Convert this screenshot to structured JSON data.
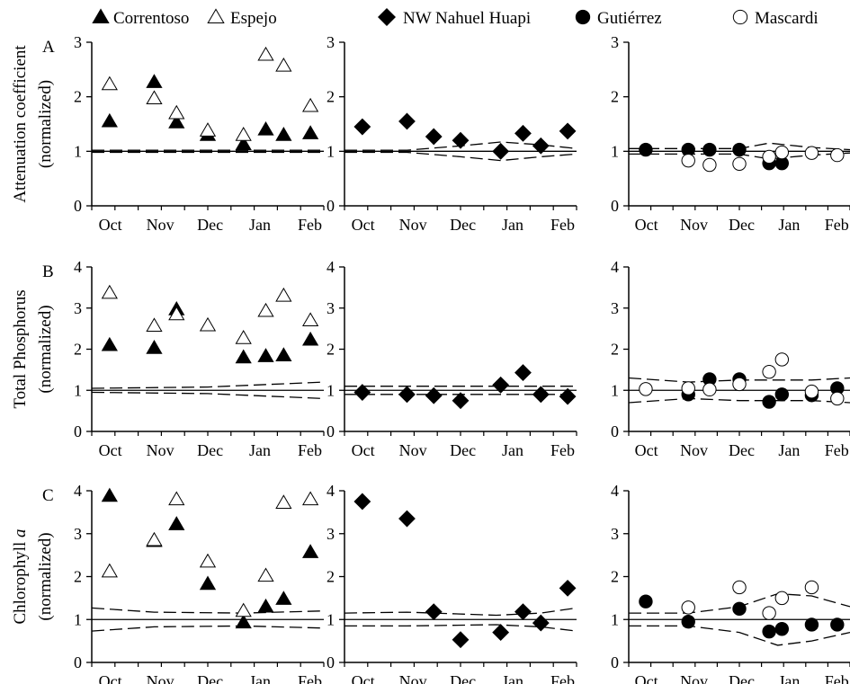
{
  "legend": [
    {
      "name": "Correntoso",
      "marker": "triangle",
      "fill": "filled"
    },
    {
      "name": "Espejo",
      "marker": "triangle",
      "fill": "open"
    },
    {
      "name": "NW Nahuel Huapi",
      "marker": "diamond",
      "fill": "filled"
    },
    {
      "name": "Gutiérrez",
      "marker": "circle",
      "fill": "filled"
    },
    {
      "name": "Mascardi",
      "marker": "circle",
      "fill": "open"
    }
  ],
  "months": [
    "Oct",
    "Nov",
    "Dec",
    "Jan",
    "Feb"
  ],
  "rows": [
    {
      "letter": "A",
      "ylabel_line1": "Attenuation coefficient",
      "ylabel_line2": "(normalized)",
      "yticks": [
        "0",
        "1",
        "2",
        "3"
      ],
      "ylim": [
        0,
        3
      ]
    },
    {
      "letter": "B",
      "ylabel_line1": "Total Phosphorus",
      "ylabel_line2": "(normalized)",
      "yticks": [
        "0",
        "1",
        "2",
        "3",
        "4"
      ],
      "ylim": [
        0,
        4
      ]
    },
    {
      "letter": "C",
      "ylabel_line1": "Chlorophyll a",
      "ylabel_line2": "(normalized)",
      "yticks": [
        "0",
        "1",
        "2",
        "3",
        "4"
      ],
      "ylim": [
        0,
        4
      ]
    }
  ],
  "chart_data": [
    {
      "type": "scatter",
      "panel": "A1",
      "x_axis": "month",
      "ylim": [
        0,
        3
      ],
      "reference_line": 1,
      "series": [
        {
          "name": "Correntoso",
          "x": [
            0.4,
            1.4,
            1.9,
            2.6,
            3.4,
            3.9,
            4.3,
            4.9
          ],
          "y": [
            1.55,
            2.27,
            1.53,
            1.3,
            1.13,
            1.4,
            1.3,
            1.33
          ]
        },
        {
          "name": "Espejo",
          "x": [
            0.4,
            1.4,
            1.9,
            2.6,
            3.4,
            3.9,
            4.3,
            4.9
          ],
          "y": [
            2.23,
            1.97,
            1.7,
            1.38,
            1.3,
            2.77,
            2.57,
            1.83
          ]
        }
      ],
      "envelope_upper": [
        [
          0,
          1.02
        ],
        [
          5.2,
          1.02
        ]
      ],
      "envelope_lower": [
        [
          0,
          0.98
        ],
        [
          5.2,
          0.98
        ]
      ]
    },
    {
      "type": "scatter",
      "panel": "A2",
      "x_axis": "month",
      "ylim": [
        0,
        3
      ],
      "reference_line": 1,
      "series": [
        {
          "name": "NW Nahuel Huapi",
          "x": [
            0.4,
            1.4,
            2.0,
            2.6,
            3.5,
            4.0,
            4.4,
            5.0
          ],
          "y": [
            1.45,
            1.55,
            1.27,
            1.2,
            1.0,
            1.33,
            1.1,
            1.37
          ]
        }
      ],
      "envelope_upper": [
        [
          0,
          1.02
        ],
        [
          1.4,
          1.02
        ],
        [
          2.6,
          1.1
        ],
        [
          3.5,
          1.17
        ],
        [
          4.4,
          1.12
        ],
        [
          5.2,
          1.05
        ]
      ],
      "envelope_lower": [
        [
          0,
          0.98
        ],
        [
          1.4,
          0.98
        ],
        [
          2.6,
          0.9
        ],
        [
          3.5,
          0.83
        ],
        [
          4.4,
          0.9
        ],
        [
          5.2,
          0.95
        ]
      ]
    },
    {
      "type": "scatter",
      "panel": "A3",
      "x_axis": "month",
      "ylim": [
        0,
        3
      ],
      "reference_line": 1,
      "series": [
        {
          "name": "Gutiérrez",
          "x": [
            0.4,
            1.4,
            1.9,
            2.6,
            3.3,
            3.6
          ],
          "y": [
            1.03,
            1.03,
            1.03,
            1.03,
            0.78,
            0.78
          ]
        },
        {
          "name": "Mascardi",
          "x": [
            1.4,
            1.9,
            2.6,
            3.3,
            3.6,
            4.3,
            4.9
          ],
          "y": [
            0.83,
            0.75,
            0.77,
            0.9,
            0.98,
            0.97,
            0.93
          ]
        }
      ],
      "envelope_upper": [
        [
          0,
          1.05
        ],
        [
          2.6,
          1.05
        ],
        [
          3.3,
          1.15
        ],
        [
          4.3,
          1.07
        ],
        [
          5.2,
          1.03
        ]
      ],
      "envelope_lower": [
        [
          0,
          0.95
        ],
        [
          2.6,
          0.95
        ],
        [
          3.3,
          0.86
        ],
        [
          4.3,
          0.93
        ],
        [
          5.2,
          0.97
        ]
      ]
    },
    {
      "type": "scatter",
      "panel": "B1",
      "x_axis": "month",
      "ylim": [
        0,
        4
      ],
      "reference_line": 1,
      "series": [
        {
          "name": "Correntoso",
          "x": [
            0.4,
            1.4,
            1.9,
            3.4,
            3.9,
            4.3,
            4.9
          ],
          "y": [
            2.1,
            2.03,
            2.97,
            1.8,
            1.83,
            1.85,
            2.23
          ]
        },
        {
          "name": "Espejo",
          "x": [
            0.4,
            1.4,
            1.9,
            2.6,
            3.4,
            3.9,
            4.3,
            4.9
          ],
          "y": [
            3.37,
            2.57,
            2.85,
            2.58,
            2.27,
            2.93,
            3.3,
            2.7
          ]
        }
      ],
      "envelope_upper": [
        [
          0,
          1.05
        ],
        [
          2.6,
          1.08
        ],
        [
          5.2,
          1.2
        ]
      ],
      "envelope_lower": [
        [
          0,
          0.95
        ],
        [
          2.6,
          0.92
        ],
        [
          5.2,
          0.8
        ]
      ]
    },
    {
      "type": "scatter",
      "panel": "B2",
      "x_axis": "month",
      "ylim": [
        0,
        4
      ],
      "reference_line": 1,
      "series": [
        {
          "name": "NW Nahuel Huapi",
          "x": [
            0.4,
            1.4,
            2.0,
            2.6,
            3.5,
            4.0,
            4.4,
            5.0
          ],
          "y": [
            0.95,
            0.9,
            0.87,
            0.75,
            1.13,
            1.43,
            0.9,
            0.85
          ]
        }
      ],
      "envelope_upper": [
        [
          0,
          1.1
        ],
        [
          5.2,
          1.1
        ]
      ],
      "envelope_lower": [
        [
          0,
          0.9
        ],
        [
          5.2,
          0.9
        ]
      ]
    },
    {
      "type": "scatter",
      "panel": "B3",
      "x_axis": "month",
      "ylim": [
        0,
        4
      ],
      "reference_line": 1,
      "series": [
        {
          "name": "Gutiérrez",
          "x": [
            1.4,
            1.9,
            2.6,
            3.3,
            3.6,
            4.3,
            4.9
          ],
          "y": [
            0.9,
            1.27,
            1.27,
            0.72,
            0.9,
            0.88,
            1.05
          ]
        },
        {
          "name": "Mascardi",
          "x": [
            0.4,
            1.4,
            1.9,
            2.6,
            3.3,
            3.6,
            4.3,
            4.9
          ],
          "y": [
            1.03,
            1.05,
            1.02,
            1.15,
            1.45,
            1.75,
            0.97,
            0.8
          ]
        }
      ],
      "envelope_upper": [
        [
          0,
          1.3
        ],
        [
          1.4,
          1.2
        ],
        [
          2.6,
          1.25
        ],
        [
          4.3,
          1.25
        ],
        [
          5.2,
          1.3
        ]
      ],
      "envelope_lower": [
        [
          0,
          0.7
        ],
        [
          1.4,
          0.8
        ],
        [
          2.6,
          0.75
        ],
        [
          4.3,
          0.75
        ],
        [
          5.2,
          0.7
        ]
      ]
    },
    {
      "type": "scatter",
      "panel": "C1",
      "x_axis": "month",
      "ylim": [
        0,
        4
      ],
      "reference_line": 1,
      "series": [
        {
          "name": "Correntoso",
          "x": [
            0.4,
            1.4,
            1.9,
            2.6,
            3.4,
            3.9,
            4.3,
            4.9
          ],
          "y": [
            3.88,
            2.83,
            3.22,
            1.83,
            0.93,
            1.3,
            1.48,
            2.57
          ]
        },
        {
          "name": "Espejo",
          "x": [
            0.4,
            1.4,
            1.9,
            2.6,
            3.4,
            3.9,
            4.3,
            4.9
          ],
          "y": [
            2.12,
            2.85,
            3.8,
            2.35,
            1.2,
            2.02,
            3.72,
            3.8
          ]
        }
      ],
      "envelope_upper": [
        [
          0,
          1.27
        ],
        [
          1.4,
          1.17
        ],
        [
          3.4,
          1.15
        ],
        [
          5.2,
          1.2
        ]
      ],
      "envelope_lower": [
        [
          0,
          0.73
        ],
        [
          1.4,
          0.83
        ],
        [
          3.4,
          0.85
        ],
        [
          5.2,
          0.8
        ]
      ]
    },
    {
      "type": "scatter",
      "panel": "C2",
      "x_axis": "month",
      "ylim": [
        0,
        4
      ],
      "reference_line": 1,
      "series": [
        {
          "name": "NW Nahuel Huapi",
          "x": [
            0.4,
            1.4,
            2.0,
            2.6,
            3.5,
            4.0,
            4.4,
            5.0
          ],
          "y": [
            3.75,
            3.35,
            1.18,
            0.53,
            0.7,
            1.18,
            0.92,
            1.73
          ]
        }
      ],
      "envelope_upper": [
        [
          0,
          1.15
        ],
        [
          1.4,
          1.17
        ],
        [
          3.4,
          1.1
        ],
        [
          4.4,
          1.15
        ],
        [
          5.2,
          1.27
        ]
      ],
      "envelope_lower": [
        [
          0,
          0.85
        ],
        [
          1.4,
          0.85
        ],
        [
          3.4,
          0.88
        ],
        [
          4.4,
          0.83
        ],
        [
          5.2,
          0.73
        ]
      ]
    },
    {
      "type": "scatter",
      "panel": "C3",
      "x_axis": "month",
      "ylim": [
        0,
        4
      ],
      "reference_line": 1,
      "series": [
        {
          "name": "Gutiérrez",
          "x": [
            0.4,
            1.4,
            2.6,
            3.3,
            3.6,
            4.3,
            4.9
          ],
          "y": [
            1.42,
            0.95,
            1.25,
            0.72,
            0.78,
            0.88,
            0.88
          ]
        },
        {
          "name": "Mascardi",
          "x": [
            1.4,
            2.6,
            3.3,
            3.6,
            4.3
          ],
          "y": [
            1.28,
            1.75,
            1.15,
            1.5,
            1.75
          ]
        }
      ],
      "envelope_upper": [
        [
          0,
          1.15
        ],
        [
          1.4,
          1.15
        ],
        [
          2.6,
          1.3
        ],
        [
          3.5,
          1.6
        ],
        [
          4.3,
          1.55
        ],
        [
          5.2,
          1.3
        ]
      ],
      "envelope_lower": [
        [
          0,
          0.85
        ],
        [
          1.4,
          0.85
        ],
        [
          2.6,
          0.7
        ],
        [
          3.5,
          0.4
        ],
        [
          4.3,
          0.5
        ],
        [
          5.2,
          0.7
        ]
      ]
    }
  ]
}
